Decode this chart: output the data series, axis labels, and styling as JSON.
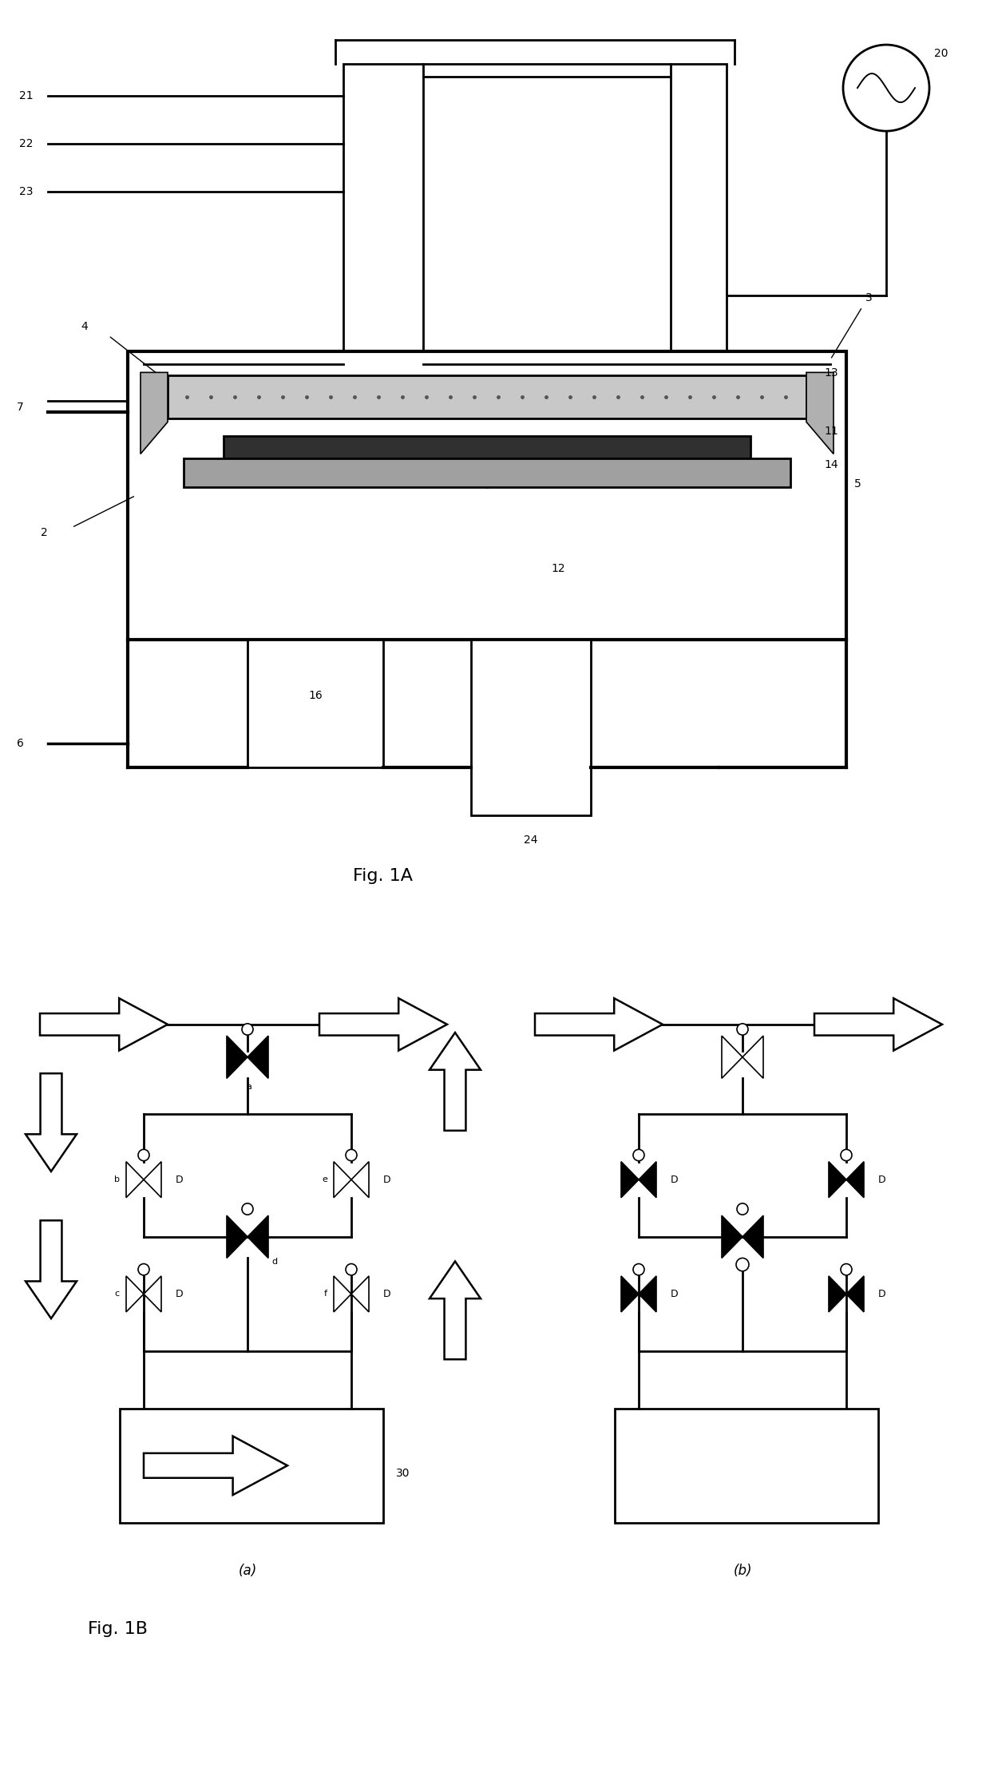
{
  "fig_width": 12.4,
  "fig_height": 22.24,
  "bg_color": "#ffffff",
  "lc": "#000000",
  "lw_main": 2.0,
  "lw_thick": 3.0,
  "lw_thin": 1.2,
  "fig1a_label": "Fig. 1A",
  "fig1b_label": "Fig. 1B",
  "label_a": "(a)",
  "label_b": "(b)"
}
